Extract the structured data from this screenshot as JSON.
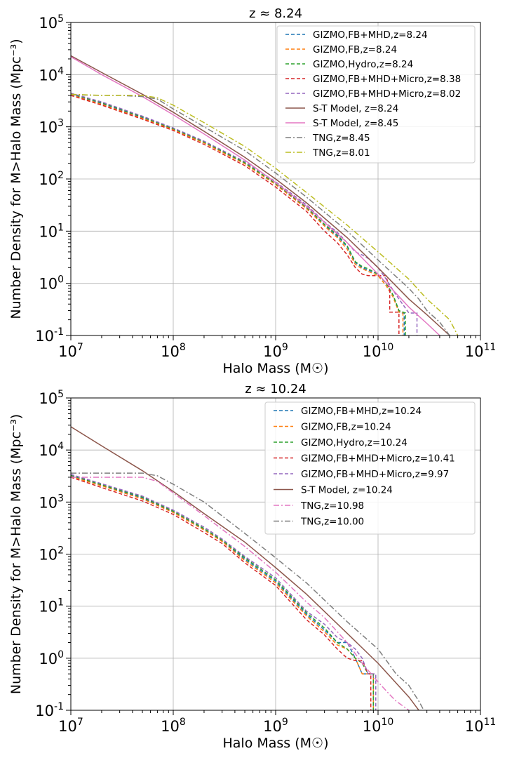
{
  "chart_data": [
    {
      "type": "line",
      "title": "z ≈ 8.24",
      "xlabel": "Halo Mass (M☉)",
      "ylabel": "Number Density for M>Halo Mass (Mpc⁻³)",
      "xscale": "log",
      "yscale": "log",
      "xlim": [
        10000000.0,
        100000000000.0
      ],
      "ylim": [
        0.1,
        100000
      ],
      "grid": true,
      "legend_position": "top-right",
      "x_tick_labels": [
        "10^7",
        "10^8",
        "10^9",
        "10^10",
        "10^11"
      ],
      "y_tick_labels": [
        "10^-1",
        "10^0",
        "10^1",
        "10^2",
        "10^3",
        "10^4",
        "10^5"
      ],
      "series": [
        {
          "name": "GIZMO,FB+MHD,z=8.24",
          "color": "#1f77b4",
          "style": "dashed",
          "x": [
            10000000.0,
            20000000.0,
            50000000.0,
            100000000.0,
            200000000.0,
            500000000.0,
            1000000000.0,
            2000000000.0,
            3000000000.0,
            4000000000.0,
            5000000000.0,
            6000000000.0,
            7000000000.0,
            8000000000.0,
            10000000000.0,
            12000000000.0,
            14000000000.0,
            16000000000.0,
            17000000000.0,
            18000000000.0,
            18000000000.0
          ],
          "y": [
            4200,
            2800,
            1500,
            900,
            500,
            200,
            80,
            28,
            13,
            8,
            5,
            2.5,
            2.0,
            1.8,
            1.5,
            1.0,
            0.6,
            0.3,
            0.27,
            0.27,
            0.1
          ]
        },
        {
          "name": "GIZMO,FB,z=8.24",
          "color": "#ff7f0e",
          "style": "dashed",
          "x": [
            10000000.0,
            20000000.0,
            50000000.0,
            100000000.0,
            200000000.0,
            500000000.0,
            1000000000.0,
            2000000000.0,
            3000000000.0,
            4000000000.0,
            5000000000.0,
            6000000000.0,
            7000000000.0,
            8000000000.0,
            10000000000.0,
            12000000000.0,
            14000000000.0,
            16000000000.0,
            17500000000.0,
            17500000000.0
          ],
          "y": [
            4100,
            2700,
            1450,
            880,
            490,
            195,
            78,
            27,
            12.5,
            7.5,
            4.5,
            2.3,
            1.9,
            1.7,
            1.4,
            0.9,
            0.55,
            0.28,
            0.27,
            0.1
          ]
        },
        {
          "name": "GIZMO,Hydro,z=8.24",
          "color": "#2ca02c",
          "style": "dashed",
          "x": [
            10000000.0,
            20000000.0,
            50000000.0,
            100000000.0,
            200000000.0,
            500000000.0,
            1000000000.0,
            2000000000.0,
            3000000000.0,
            4000000000.0,
            5000000000.0,
            6000000000.0,
            7000000000.0,
            8000000000.0,
            10000000000.0,
            12000000000.0,
            14000000000.0,
            16000000000.0,
            18500000000.0,
            18500000000.0
          ],
          "y": [
            4300,
            2900,
            1550,
            920,
            510,
            205,
            82,
            29,
            13.5,
            8.5,
            5.2,
            2.6,
            2.1,
            1.9,
            1.5,
            1.0,
            0.6,
            0.3,
            0.27,
            0.1
          ]
        },
        {
          "name": "GIZMO,FB+MHD+Micro,z=8.38",
          "color": "#d62728",
          "style": "dashed",
          "x": [
            10000000.0,
            20000000.0,
            50000000.0,
            100000000.0,
            200000000.0,
            500000000.0,
            1000000000.0,
            2000000000.0,
            3000000000.0,
            4000000000.0,
            5000000000.0,
            6000000000.0,
            7000000000.0,
            8000000000.0,
            10000000000.0,
            12000000000.0,
            13000000000.0,
            13000000000.0,
            16000000000.0,
            16000000000.0
          ],
          "y": [
            4000,
            2600,
            1400,
            850,
            460,
            180,
            70,
            24,
            10,
            6,
            3.5,
            2.0,
            1.5,
            1.4,
            1.4,
            1.4,
            0.7,
            0.28,
            0.28,
            0.1
          ]
        },
        {
          "name": "GIZMO,FB+MHD+Micro,z=8.02",
          "color": "#9467bd",
          "style": "dashed",
          "x": [
            10000000.0,
            20000000.0,
            50000000.0,
            100000000.0,
            200000000.0,
            500000000.0,
            1000000000.0,
            2000000000.0,
            3000000000.0,
            4000000000.0,
            5000000000.0,
            6000000000.0,
            7000000000.0,
            8000000000.0,
            10000000000.0,
            12000000000.0,
            15000000000.0,
            20000000000.0,
            24000000000.0,
            24000000000.0
          ],
          "y": [
            4400,
            3000,
            1600,
            950,
            530,
            215,
            88,
            32,
            15,
            9.5,
            6,
            4,
            3.5,
            3.0,
            2.0,
            1.2,
            0.6,
            0.27,
            0.27,
            0.1
          ]
        },
        {
          "name": "S-T Model, z=8.24",
          "color": "#8c564b",
          "style": "solid",
          "x": [
            10000000.0,
            20000000.0,
            50000000.0,
            100000000.0,
            200000000.0,
            500000000.0,
            1000000000.0,
            2000000000.0,
            5000000000.0,
            10000000000.0,
            20000000000.0,
            30000000000.0,
            50000000000.0
          ],
          "y": [
            23000,
            11000,
            4200,
            1900,
            820,
            260,
            100,
            35,
            7.5,
            2.0,
            0.5,
            0.25,
            0.1
          ]
        },
        {
          "name": "S-T Model, z=8.45",
          "color": "#e377c2",
          "style": "solid",
          "x": [
            10000000.0,
            20000000.0,
            50000000.0,
            100000000.0,
            200000000.0,
            500000000.0,
            1000000000.0,
            2000000000.0,
            5000000000.0,
            10000000000.0,
            20000000000.0,
            30000000000.0,
            40000000000.0
          ],
          "y": [
            22000,
            10000,
            3800,
            1700,
            730,
            230,
            85,
            30,
            6,
            1.5,
            0.35,
            0.17,
            0.1
          ]
        },
        {
          "name": "TNG,z=8.45",
          "color": "#7f7f7f",
          "style": "dashdot",
          "x": [
            10000000.0,
            20000000.0,
            30000000.0,
            50000000.0,
            70000000.0,
            100000000.0,
            200000000.0,
            500000000.0,
            1000000000.0,
            2000000000.0,
            5000000000.0,
            10000000000.0,
            20000000000.0,
            25000000000.0,
            30000000000.0,
            40000000000.0,
            50000000000.0
          ],
          "y": [
            4100,
            4000,
            4000,
            3800,
            3400,
            2200,
            1000,
            350,
            130,
            45,
            10,
            2.8,
            0.8,
            0.5,
            0.3,
            0.18,
            0.1
          ]
        },
        {
          "name": "TNG,z=8.01",
          "color": "#bcbd22",
          "style": "dashdot",
          "x": [
            10000000.0,
            20000000.0,
            30000000.0,
            50000000.0,
            70000000.0,
            100000000.0,
            200000000.0,
            500000000.0,
            1000000000.0,
            2000000000.0,
            5000000000.0,
            10000000000.0,
            20000000000.0,
            30000000000.0,
            40000000000.0,
            50000000000.0,
            60000000000.0
          ],
          "y": [
            4200,
            4000,
            4000,
            4000,
            3600,
            2600,
            1200,
            420,
            160,
            55,
            13,
            4,
            1.2,
            0.5,
            0.3,
            0.2,
            0.1
          ]
        }
      ]
    },
    {
      "type": "line",
      "title": "z ≈ 10.24",
      "xlabel": "Halo Mass (M☉)",
      "ylabel": "Number Density for M>Halo Mass (Mpc⁻³)",
      "xscale": "log",
      "yscale": "log",
      "xlim": [
        10000000.0,
        100000000000.0
      ],
      "ylim": [
        0.1,
        100000
      ],
      "grid": true,
      "legend_position": "top-right",
      "x_tick_labels": [
        "10^7",
        "10^8",
        "10^9",
        "10^10",
        "10^11"
      ],
      "y_tick_labels": [
        "10^-1",
        "10^0",
        "10^1",
        "10^2",
        "10^3",
        "10^4",
        "10^5"
      ],
      "series": [
        {
          "name": "GIZMO,FB+MHD,z=10.24",
          "color": "#1f77b4",
          "style": "dashed",
          "x": [
            10000000.0,
            20000000.0,
            50000000.0,
            100000000.0,
            200000000.0,
            300000000.0,
            500000000.0,
            1000000000.0,
            2000000000.0,
            3000000000.0,
            4000000000.0,
            5000000000.0,
            6000000000.0,
            7000000000.0,
            8000000000.0,
            9000000000.0,
            9000000000.0
          ],
          "y": [
            3200,
            2100,
            1200,
            650,
            300,
            180,
            80,
            30,
            7,
            3.5,
            2.0,
            2.0,
            1.0,
            0.5,
            0.5,
            0.5,
            0.1
          ]
        },
        {
          "name": "GIZMO,FB,z=10.24",
          "color": "#ff7f0e",
          "style": "dashed",
          "x": [
            10000000.0,
            20000000.0,
            50000000.0,
            100000000.0,
            200000000.0,
            300000000.0,
            500000000.0,
            1000000000.0,
            2000000000.0,
            3000000000.0,
            4000000000.0,
            5000000000.0,
            6000000000.0,
            7000000000.0,
            8000000000.0,
            9000000000.0,
            9000000000.0
          ],
          "y": [
            3100,
            2050,
            1150,
            630,
            290,
            175,
            75,
            28,
            6.5,
            3.2,
            1.8,
            1.5,
            1.0,
            0.5,
            0.5,
            0.5,
            0.1
          ]
        },
        {
          "name": "GIZMO,Hydro,z=10.24",
          "color": "#2ca02c",
          "style": "dashed",
          "x": [
            10000000.0,
            20000000.0,
            50000000.0,
            100000000.0,
            200000000.0,
            300000000.0,
            500000000.0,
            1000000000.0,
            2000000000.0,
            3000000000.0,
            4000000000.0,
            5000000000.0,
            6000000000.0,
            7000000000.0,
            8000000000.0,
            9000000000.0,
            9000000000.0
          ],
          "y": [
            3300,
            2150,
            1250,
            670,
            310,
            185,
            85,
            32,
            7.5,
            3.8,
            2.0,
            1.5,
            1.0,
            0.8,
            0.5,
            0.5,
            0.1
          ]
        },
        {
          "name": "GIZMO,FB+MHD+Micro,z=10.41",
          "color": "#d62728",
          "style": "dashed",
          "x": [
            10000000.0,
            20000000.0,
            50000000.0,
            100000000.0,
            200000000.0,
            300000000.0,
            500000000.0,
            1000000000.0,
            2000000000.0,
            3000000000.0,
            4000000000.0,
            5000000000.0,
            6000000000.0,
            7000000000.0,
            8000000000.0,
            8500000000.0,
            8500000000.0
          ],
          "y": [
            3000,
            1900,
            1050,
            580,
            260,
            160,
            68,
            25,
            5.5,
            2.8,
            1.5,
            1.0,
            0.9,
            0.9,
            0.5,
            0.5,
            0.1
          ]
        },
        {
          "name": "GIZMO,FB+MHD+Micro,z=9.97",
          "color": "#9467bd",
          "style": "dashed",
          "x": [
            10000000.0,
            20000000.0,
            50000000.0,
            100000000.0,
            200000000.0,
            300000000.0,
            500000000.0,
            1000000000.0,
            2000000000.0,
            3000000000.0,
            4000000000.0,
            5000000000.0,
            6000000000.0,
            7000000000.0,
            8000000000.0,
            9500000000.0,
            9500000000.0
          ],
          "y": [
            3400,
            2250,
            1300,
            700,
            330,
            195,
            90,
            35,
            8,
            4.5,
            2.5,
            2.0,
            1.5,
            1.0,
            0.5,
            0.5,
            0.1
          ]
        },
        {
          "name": "S-T Model, z=10.24",
          "color": "#8c564b",
          "style": "solid",
          "x": [
            10000000.0,
            20000000.0,
            50000000.0,
            100000000.0,
            200000000.0,
            500000000.0,
            1000000000.0,
            2000000000.0,
            5000000000.0,
            10000000000.0,
            20000000000.0,
            25000000000.0
          ],
          "y": [
            28000,
            12000,
            4000,
            1600,
            600,
            170,
            55,
            17,
            3.0,
            0.8,
            0.18,
            0.1
          ]
        },
        {
          "name": "TNG,z=10.98",
          "color": "#e377c2",
          "style": "dashdot",
          "x": [
            10000000.0,
            20000000.0,
            30000000.0,
            50000000.0,
            70000000.0,
            100000000.0,
            200000000.0,
            500000000.0,
            1000000000.0,
            2000000000.0,
            3000000000.0,
            5000000000.0,
            7000000000.0,
            10000000000.0,
            13000000000.0,
            15000000000.0,
            20000000000.0
          ],
          "y": [
            3000,
            3000,
            3000,
            3000,
            2500,
            1500,
            550,
            140,
            45,
            12,
            6,
            2.0,
            0.8,
            0.35,
            0.2,
            0.15,
            0.1
          ]
        },
        {
          "name": "TNG,z=10.00",
          "color": "#7f7f7f",
          "style": "dashdot",
          "x": [
            10000000.0,
            20000000.0,
            30000000.0,
            50000000.0,
            70000000.0,
            100000000.0,
            200000000.0,
            500000000.0,
            1000000000.0,
            2000000000.0,
            5000000000.0,
            10000000000.0,
            15000000000.0,
            20000000000.0,
            25000000000.0,
            28000000000.0
          ],
          "y": [
            3600,
            3600,
            3600,
            3600,
            3200,
            2200,
            1000,
            250,
            85,
            28,
            5,
            1.5,
            0.5,
            0.3,
            0.15,
            0.1
          ]
        }
      ]
    }
  ]
}
